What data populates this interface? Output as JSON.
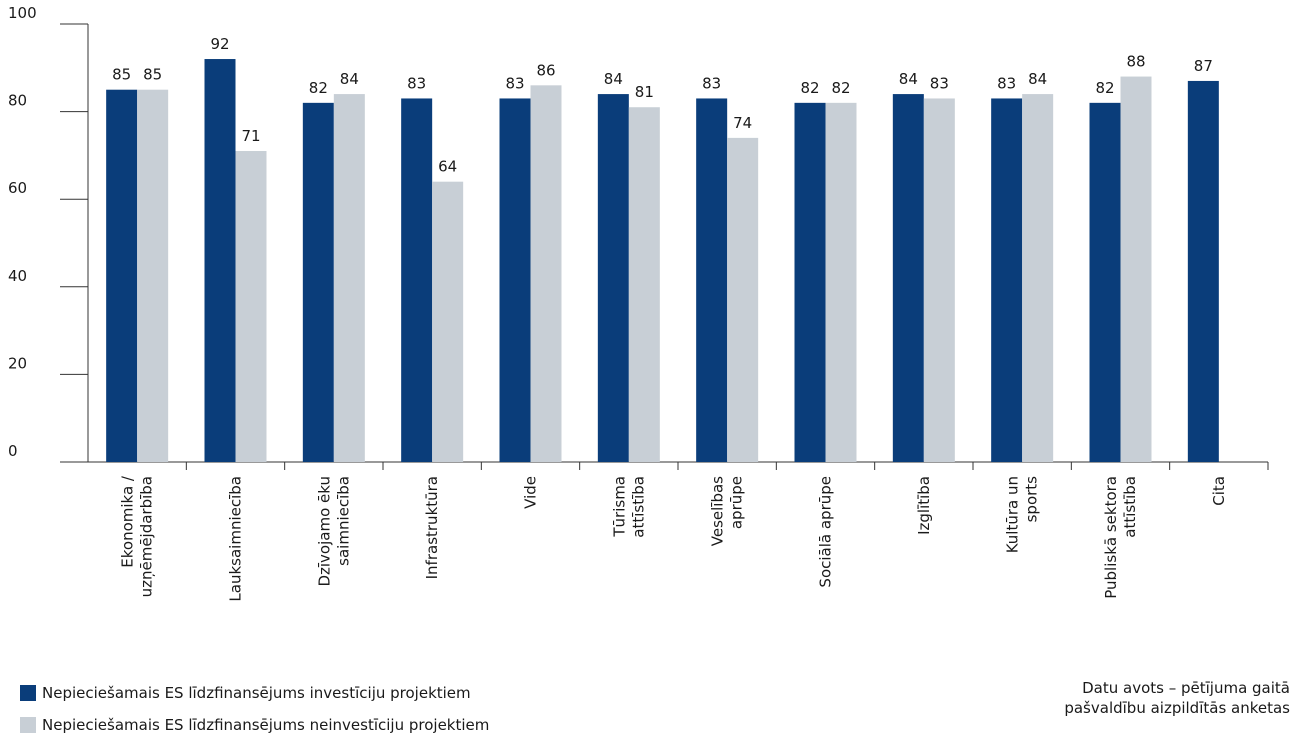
{
  "chart_data": {
    "type": "bar",
    "categories": [
      [
        "Ekonomika /",
        "uzņēmējdarbība"
      ],
      [
        "Lauksaimniecība"
      ],
      [
        "Dzīvojamo ēku",
        "saimniecība"
      ],
      [
        "Infrastruktūra"
      ],
      [
        "Vide"
      ],
      [
        "Tūrisma",
        "attīstība"
      ],
      [
        "Veselības",
        "aprūpe"
      ],
      [
        "Sociālā aprūpe"
      ],
      [
        "Izglītība"
      ],
      [
        "Kultūra un",
        "sports"
      ],
      [
        "Publiskā sektora",
        "attīstība"
      ],
      [
        "Cita"
      ]
    ],
    "series": [
      {
        "name": "Nepieciešamais ES līdzfinansējums investīciju projektiem",
        "color": "#0a3d7a",
        "values": [
          85,
          92,
          82,
          83,
          83,
          84,
          83,
          82,
          84,
          83,
          82,
          87
        ]
      },
      {
        "name": "Nepieciešamais ES līdzfinansējums neinvestīciju projektiem",
        "color": "#c8cfd6",
        "values": [
          85,
          71,
          84,
          64,
          86,
          81,
          74,
          82,
          83,
          84,
          88,
          null
        ]
      }
    ],
    "ylim": [
      0,
      100
    ],
    "yticks": [
      0,
      20,
      40,
      60,
      80,
      100
    ],
    "grid": false,
    "legend": "bottom-left",
    "data_labels": true
  },
  "source": {
    "line1": "Datu avots – pētījuma gaitā",
    "line2": "pašvaldību aizpildītās anketas"
  }
}
